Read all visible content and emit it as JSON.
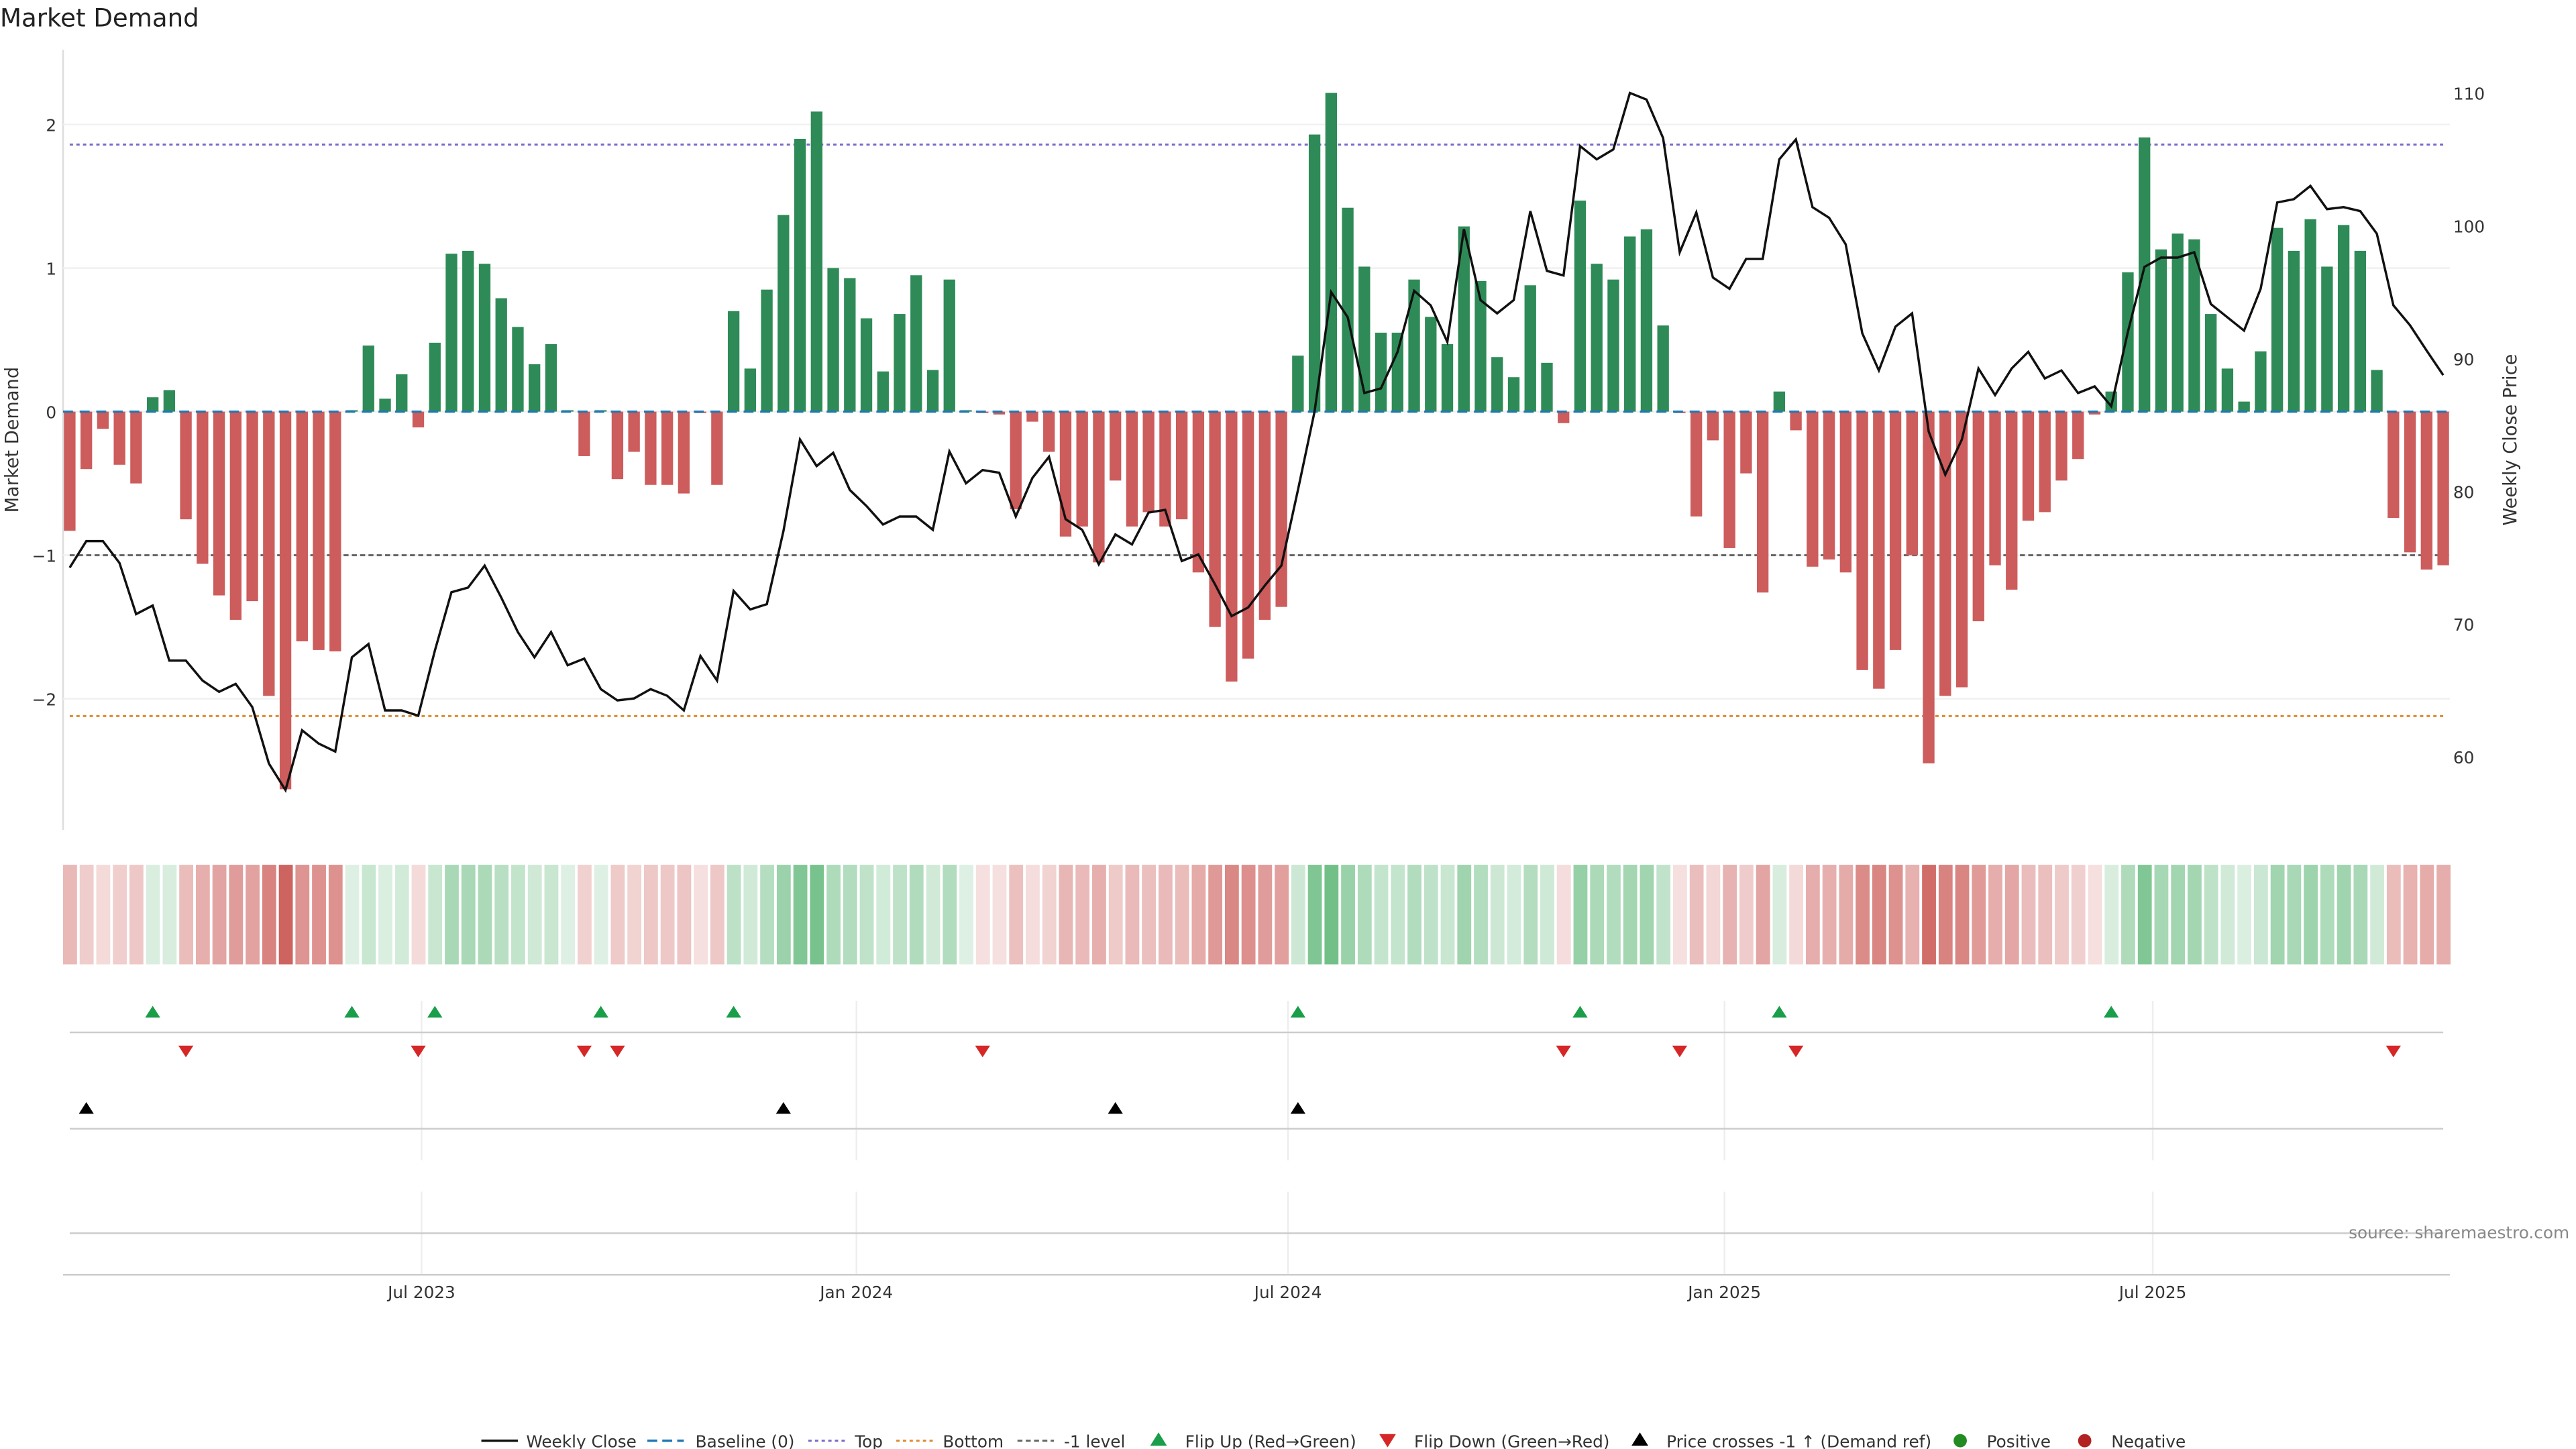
{
  "title": "Market Demand",
  "source": "source: sharemaestro.com",
  "chart_data": {
    "type": "bar",
    "title": "Market Demand",
    "ylabel": "Market Demand",
    "y2label": "Weekly Close Price",
    "ylim": [
      -2.9,
      2.5
    ],
    "y2lim": [
      54.5,
      113.5
    ],
    "yticks": [
      -2,
      -1,
      0,
      1,
      2
    ],
    "y2ticks": [
      60,
      70,
      80,
      90,
      100,
      110
    ],
    "xticks": [
      {
        "label": "Jul 2023",
        "pos": 22.2
      },
      {
        "label": "Jan 2024",
        "pos": 48.4
      },
      {
        "label": "Jul 2024",
        "pos": 74.4
      },
      {
        "label": "Jan 2025",
        "pos": 100.7
      },
      {
        "label": "Jul 2025",
        "pos": 126.5
      }
    ],
    "levels": {
      "top": 1.86,
      "bottom": -2.12,
      "minus_one": -1,
      "baseline": 0
    },
    "demand": [
      -0.83,
      -0.4,
      -0.12,
      -0.37,
      -0.5,
      0.1,
      0.15,
      -0.75,
      -1.06,
      -1.28,
      -1.45,
      -1.32,
      -1.98,
      -2.63,
      -1.6,
      -1.66,
      -1.67,
      0.01,
      0.46,
      0.09,
      0.26,
      -0.11,
      0.48,
      1.1,
      1.12,
      1.03,
      0.79,
      0.59,
      0.33,
      0.47,
      0.01,
      -0.31,
      0.01,
      -0.47,
      -0.28,
      -0.51,
      -0.51,
      -0.57,
      -0.01,
      -0.51,
      0.7,
      0.3,
      0.85,
      1.37,
      1.9,
      2.09,
      1.0,
      0.93,
      0.65,
      0.28,
      0.68,
      0.95,
      0.29,
      0.92,
      0.01,
      -0.01,
      -0.02,
      -0.68,
      -0.07,
      -0.28,
      -0.87,
      -0.8,
      -1.05,
      -0.48,
      -0.8,
      -0.7,
      -0.8,
      -0.75,
      -1.12,
      -1.5,
      -1.88,
      -1.72,
      -1.45,
      -1.36,
      0.39,
      1.93,
      2.22,
      1.42,
      1.01,
      0.55,
      0.55,
      0.92,
      0.66,
      0.47,
      1.29,
      0.91,
      0.38,
      0.24,
      0.88,
      0.34,
      -0.08,
      1.47,
      1.03,
      0.92,
      1.22,
      1.27,
      0.6,
      -0.01,
      -0.73,
      -0.2,
      -0.95,
      -0.43,
      -1.26,
      0.14,
      -0.13,
      -1.08,
      -1.03,
      -1.12,
      -1.8,
      -1.93,
      -1.66,
      -1.0,
      -2.45,
      -1.98,
      -1.92,
      -1.46,
      -1.07,
      -1.24,
      -0.76,
      -0.7,
      -0.48,
      -0.33,
      -0.02,
      0.14,
      0.97,
      1.91,
      1.13,
      1.24,
      1.2,
      0.68,
      0.3,
      0.07,
      0.42,
      1.28,
      1.12,
      1.34,
      1.01,
      1.3,
      1.12,
      0.29,
      -0.74,
      -0.98,
      -1.1,
      -1.07
    ],
    "price": [
      74.25,
      76.25,
      76.25,
      74.6,
      70.75,
      71.4,
      67.25,
      67.25,
      65.75,
      64.9,
      65.5,
      63.75,
      59.5,
      57.5,
      62,
      61,
      60.4,
      67.5,
      68.5,
      63.5,
      63.5,
      63.1,
      68,
      72.4,
      72.75,
      74.4,
      72,
      69.4,
      67.5,
      69.4,
      66.9,
      67.4,
      65.1,
      64.25,
      64.4,
      65.1,
      64.6,
      63.5,
      67.6,
      65.75,
      72.5,
      71.1,
      71.5,
      77,
      83.9,
      81.9,
      82.9,
      80.1,
      78.9,
      77.5,
      78.1,
      78.1,
      77.1,
      83,
      80.6,
      81.6,
      81.4,
      78.1,
      81,
      82.6,
      77.9,
      77.1,
      74.5,
      76.75,
      76,
      78.4,
      78.6,
      74.75,
      75.25,
      73,
      70.6,
      71.25,
      72.9,
      74.4,
      80.1,
      86,
      95,
      93.1,
      87.4,
      87.75,
      90.5,
      95.1,
      94,
      91.25,
      99.75,
      94.4,
      93.4,
      94.4,
      101.1,
      96.6,
      96.25,
      106,
      105,
      105.75,
      110,
      109.5,
      106.6,
      98,
      101,
      96.1,
      95.25,
      97.5,
      97.5,
      105,
      106.5,
      101.4,
      100.6,
      98.6,
      91.9,
      89.1,
      92.4,
      93.4,
      84.5,
      81.25,
      83.9,
      89.25,
      87.25,
      89.25,
      90.5,
      88.5,
      89.1,
      87.4,
      87.9,
      86.4,
      92,
      96.9,
      97.6,
      97.6,
      98,
      94.1,
      93.1,
      92.1,
      95.25,
      101.75,
      102,
      103,
      101.25,
      101.4,
      101.1,
      99.4,
      94,
      92.5,
      90.6,
      88.75
    ],
    "flip_up_idx": [
      6,
      18,
      23,
      33,
      41,
      75,
      92,
      104,
      124
    ],
    "flip_down_idx": [
      8,
      22,
      32,
      34,
      56,
      91,
      98,
      105,
      141
    ],
    "price_cross_idx": [
      2,
      44,
      64,
      75
    ],
    "colors": {
      "positive": "#2e8b57",
      "negative": "#cd5c5c",
      "price": "#111111",
      "baseline": "#1f77b4",
      "top": "#7b68c8",
      "bottom": "#e08a2c",
      "minus_one": "#666666",
      "flip_up": "#1a9e4a",
      "flip_down": "#d62728",
      "cross": "#000000",
      "legend_positive": "#228b22",
      "legend_negative": "#b22222"
    },
    "legend": {
      "weekly_close": "Weekly Close",
      "baseline": "Baseline (0)",
      "top": "Top",
      "bottom": "Bottom",
      "minus_one": "-1 level",
      "flip_up": "Flip Up (Red→Green)",
      "flip_down": "Flip Down (Green→Red)",
      "cross": "Price crosses -1 ↑ (Demand ref)",
      "positive": "Positive",
      "negative": "Negative"
    }
  }
}
